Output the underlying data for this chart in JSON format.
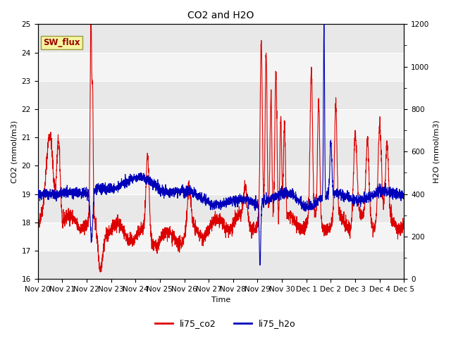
{
  "title": "CO2 and H2O",
  "xlabel": "Time",
  "ylabel_left": "CO2 (mmol/m3)",
  "ylabel_right": "H2O (mmol/m3)",
  "co2_color": "#dd0000",
  "h2o_color": "#0000bb",
  "ylim_left": [
    16.0,
    25.0
  ],
  "ylim_right": [
    0,
    1200
  ],
  "yticks_left": [
    16.0,
    17.0,
    18.0,
    19.0,
    20.0,
    21.0,
    22.0,
    23.0,
    24.0,
    25.0
  ],
  "yticks_right": [
    0,
    200,
    400,
    600,
    800,
    1000,
    1200
  ],
  "x_tick_labels": [
    "Nov 20",
    "Nov 21",
    "Nov 22",
    "Nov 23",
    "Nov 24",
    "Nov 25",
    "Nov 26",
    "Nov 27",
    "Nov 28",
    "Nov 29",
    "Nov 30",
    "Dec 1",
    "Dec 2",
    "Dec 3",
    "Dec 4",
    "Dec 5"
  ],
  "legend_labels": [
    "li75_co2",
    "li75_h2o"
  ],
  "sw_flux_label": "SW_flux",
  "linewidth": 0.8,
  "n_points": 3000,
  "seed": 42,
  "band_colors": [
    "#e8e8e8",
    "#f4f4f4"
  ],
  "fig_bg": "#ffffff"
}
